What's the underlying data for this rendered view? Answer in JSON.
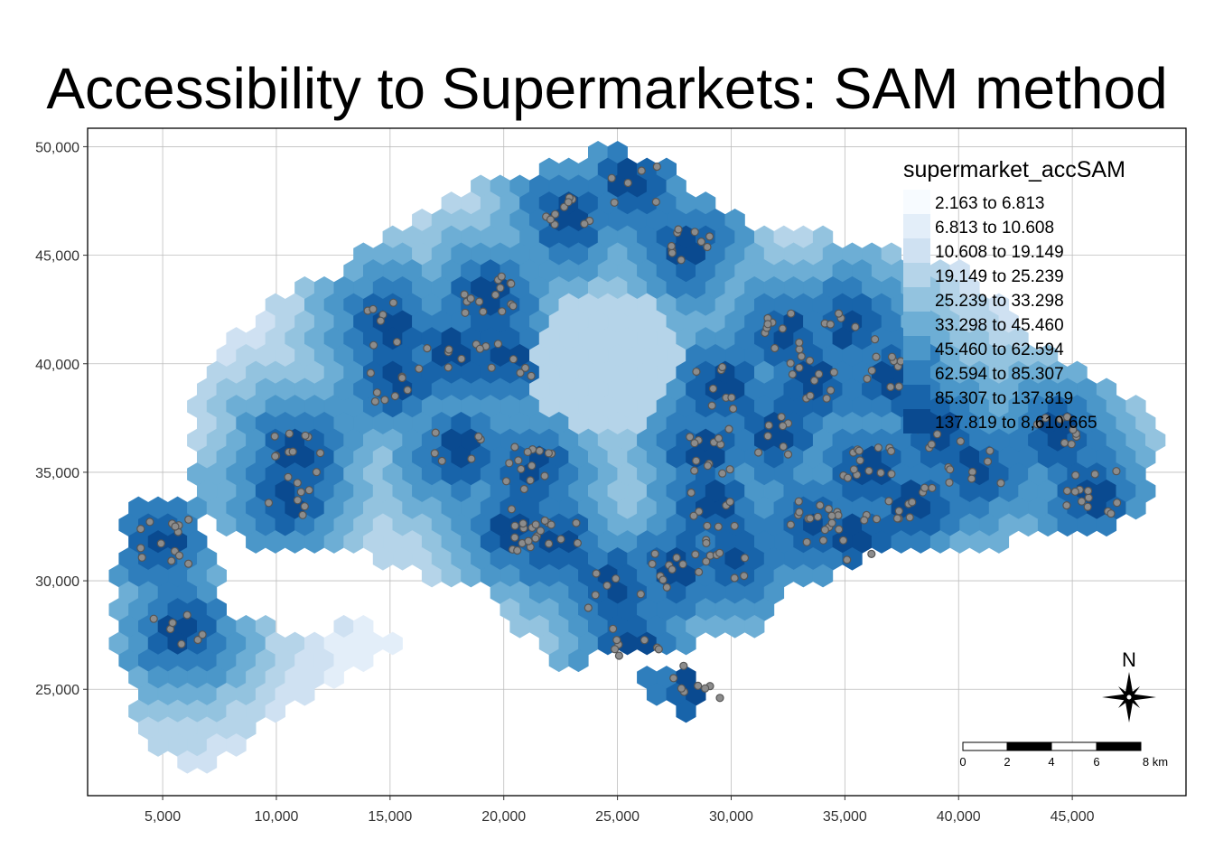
{
  "title": "Accessibility to Supermarkets: SAM method",
  "x_axis": {
    "ticks": [
      5000,
      10000,
      15000,
      20000,
      25000,
      30000,
      35000,
      40000,
      45000
    ],
    "tick_labels": [
      "5,000",
      "10,000",
      "15,000",
      "20,000",
      "25,000",
      "30,000",
      "35,000",
      "40,000",
      "45,000"
    ],
    "range": [
      1700,
      50000
    ]
  },
  "y_axis": {
    "ticks": [
      25000,
      30000,
      35000,
      40000,
      45000,
      50000
    ],
    "tick_labels": [
      "25,000",
      "30,000",
      "35,000",
      "40,000",
      "45,000",
      "50,000"
    ],
    "range": [
      20100,
      50850
    ]
  },
  "grid": true,
  "legend": {
    "title": "supermarket_accSAM",
    "placement": "top-right",
    "classes": [
      {
        "label": "2.163 to 6.813",
        "color": "#f7fbff"
      },
      {
        "label": "6.813 to 10.608",
        "color": "#e3eef9"
      },
      {
        "label": "10.608 to 19.149",
        "color": "#cfe1f2"
      },
      {
        "label": "19.149 to 25.239",
        "color": "#b5d4e9"
      },
      {
        "label": "25.239 to 33.298",
        "color": "#93c3df"
      },
      {
        "label": "33.298 to 45.460",
        "color": "#6daed5"
      },
      {
        "label": "45.460 to 62.594",
        "color": "#4b97c9"
      },
      {
        "label": "62.594 to 85.307",
        "color": "#2f7ebc"
      },
      {
        "label": "85.307 to 137.819",
        "color": "#1864aa"
      },
      {
        "label": "137.819 to 8,610.665",
        "color": "#0a4a90"
      }
    ]
  },
  "north_arrow": {
    "label": "N"
  },
  "scale_bar": {
    "labels": [
      "0",
      "2",
      "4",
      "6",
      "8 km"
    ]
  },
  "markers": {
    "name": "supermarkets",
    "fill": "#8c8c8c",
    "stroke": "#555555"
  }
}
